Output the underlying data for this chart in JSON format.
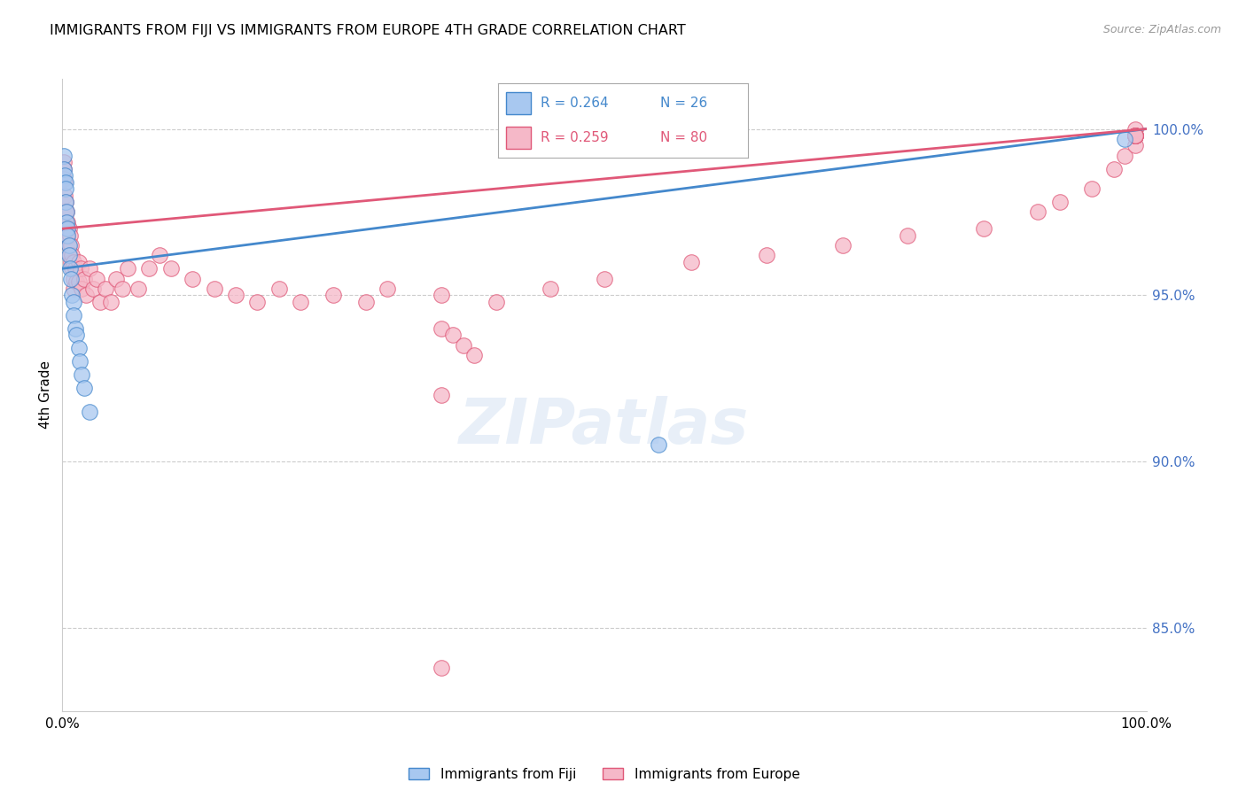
{
  "title": "IMMIGRANTS FROM FIJI VS IMMIGRANTS FROM EUROPE 4TH GRADE CORRELATION CHART",
  "source": "Source: ZipAtlas.com",
  "ylabel": "4th Grade",
  "legend_fiji": "Immigrants from Fiji",
  "legend_europe": "Immigrants from Europe",
  "fiji_R": "R = 0.264",
  "fiji_N": "N = 26",
  "europe_R": "R = 0.259",
  "europe_N": "N = 80",
  "color_fiji": "#a8c8f0",
  "color_europe": "#f5b8c8",
  "color_fiji_line": "#4488cc",
  "color_europe_line": "#e05878",
  "color_ytick": "#4472c4",
  "ytick_labels": [
    "100.0%",
    "95.0%",
    "90.0%",
    "85.0%"
  ],
  "ytick_values": [
    1.0,
    0.95,
    0.9,
    0.85
  ],
  "xlim": [
    0.0,
    1.0
  ],
  "ylim": [
    0.825,
    1.015
  ],
  "fiji_x": [
    0.001,
    0.001,
    0.002,
    0.003,
    0.003,
    0.003,
    0.004,
    0.004,
    0.005,
    0.005,
    0.006,
    0.006,
    0.007,
    0.008,
    0.009,
    0.01,
    0.01,
    0.012,
    0.013,
    0.015,
    0.016,
    0.018,
    0.02,
    0.025,
    0.55,
    0.98
  ],
  "fiji_y": [
    0.992,
    0.988,
    0.986,
    0.984,
    0.982,
    0.978,
    0.975,
    0.972,
    0.97,
    0.968,
    0.965,
    0.962,
    0.958,
    0.955,
    0.95,
    0.948,
    0.944,
    0.94,
    0.938,
    0.934,
    0.93,
    0.926,
    0.922,
    0.915,
    0.905,
    0.997
  ],
  "europe_x": [
    0.001,
    0.001,
    0.001,
    0.002,
    0.002,
    0.003,
    0.003,
    0.003,
    0.004,
    0.004,
    0.005,
    0.005,
    0.006,
    0.006,
    0.007,
    0.007,
    0.008,
    0.008,
    0.009,
    0.009,
    0.01,
    0.01,
    0.01,
    0.012,
    0.013,
    0.015,
    0.015,
    0.017,
    0.018,
    0.02,
    0.022,
    0.025,
    0.028,
    0.032,
    0.035,
    0.04,
    0.045,
    0.05,
    0.055,
    0.06,
    0.07,
    0.08,
    0.09,
    0.1,
    0.12,
    0.14,
    0.16,
    0.18,
    0.2,
    0.22,
    0.25,
    0.28,
    0.3,
    0.35,
    0.4,
    0.45,
    0.5,
    0.58,
    0.65,
    0.72,
    0.78,
    0.85,
    0.9,
    0.92,
    0.95,
    0.97,
    0.98,
    0.99,
    0.99,
    0.99,
    0.99,
    0.99,
    0.99,
    0.99,
    0.99,
    0.99,
    0.35,
    0.36,
    0.37,
    0.38
  ],
  "europe_y": [
    0.99,
    0.988,
    0.985,
    0.984,
    0.98,
    0.978,
    0.975,
    0.972,
    0.975,
    0.97,
    0.972,
    0.968,
    0.97,
    0.965,
    0.968,
    0.962,
    0.965,
    0.96,
    0.962,
    0.958,
    0.96,
    0.955,
    0.952,
    0.958,
    0.954,
    0.96,
    0.954,
    0.958,
    0.952,
    0.955,
    0.95,
    0.958,
    0.952,
    0.955,
    0.948,
    0.952,
    0.948,
    0.955,
    0.952,
    0.958,
    0.952,
    0.958,
    0.962,
    0.958,
    0.955,
    0.952,
    0.95,
    0.948,
    0.952,
    0.948,
    0.95,
    0.948,
    0.952,
    0.95,
    0.948,
    0.952,
    0.955,
    0.96,
    0.962,
    0.965,
    0.968,
    0.97,
    0.975,
    0.978,
    0.982,
    0.988,
    0.992,
    0.995,
    0.998,
    1.0,
    0.998,
    0.998,
    0.998,
    0.998,
    0.998,
    0.998,
    0.94,
    0.938,
    0.935,
    0.932
  ],
  "europe_outlier_x": [
    0.35
  ],
  "europe_outlier_y": [
    0.92
  ],
  "europe_low_x": [
    0.35
  ],
  "europe_low_y": [
    0.838
  ],
  "fiji_line_x0": 0.0,
  "fiji_line_y0": 0.958,
  "fiji_line_x1": 1.0,
  "fiji_line_y1": 1.0,
  "europe_line_x0": 0.0,
  "europe_line_y0": 0.97,
  "europe_line_x1": 1.0,
  "europe_line_y1": 1.0
}
